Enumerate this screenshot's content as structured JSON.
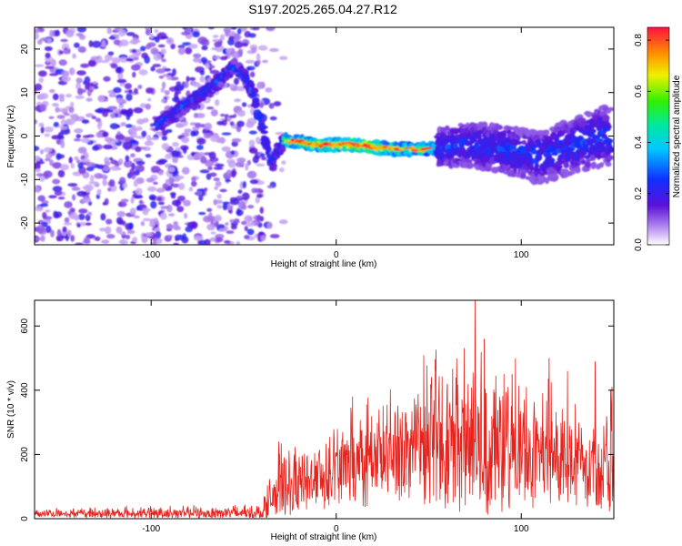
{
  "title": "S197.2025.265.04.27.R12",
  "chart_data": [
    {
      "type": "heatmap",
      "xlabel": "Height of straight line (km)",
      "ylabel": "Frequency (Hz)",
      "xlim": [
        -163,
        150
      ],
      "ylim": [
        -25,
        25
      ],
      "xticks": [
        -100,
        0,
        100
      ],
      "yticks": [
        -20,
        -10,
        0,
        10,
        20
      ],
      "colorbar": {
        "label": "Normalized spectral amplitude",
        "ticks": [
          0.0,
          0.2,
          0.4,
          0.6,
          0.8
        ],
        "range": [
          0,
          0.85
        ]
      },
      "ridge": [
        {
          "x": -95,
          "y": 3
        },
        {
          "x": -85,
          "y": 6
        },
        {
          "x": -75,
          "y": 9
        },
        {
          "x": -65,
          "y": 12
        },
        {
          "x": -55,
          "y": 16
        },
        {
          "x": -50,
          "y": 14
        },
        {
          "x": -45,
          "y": 10
        },
        {
          "x": -40,
          "y": 2
        },
        {
          "x": -35,
          "y": -6
        },
        {
          "x": -28,
          "y": -1
        },
        {
          "x": -10,
          "y": -2
        },
        {
          "x": 10,
          "y": -2
        },
        {
          "x": 30,
          "y": -3
        },
        {
          "x": 50,
          "y": -3
        },
        {
          "x": 70,
          "y": -2
        },
        {
          "x": 90,
          "y": -3
        },
        {
          "x": 110,
          "y": -5
        },
        {
          "x": 130,
          "y": -2
        },
        {
          "x": 145,
          "y": 0
        }
      ]
    },
    {
      "type": "line",
      "xlabel": "Height of straight line (km)",
      "ylabel": "SNR (10 * v/v)",
      "xlim": [
        -163,
        150
      ],
      "ylim": [
        0,
        680
      ],
      "xticks": [
        -100,
        0,
        100
      ],
      "yticks": [
        0,
        200,
        400,
        600
      ],
      "series": [
        {
          "name": "SNR",
          "color": "#e8221c",
          "envelope_x": [
            -163,
            -40,
            -35,
            -30,
            -20,
            0,
            20,
            40,
            60,
            70,
            80,
            100,
            120,
            140,
            150
          ],
          "envelope_base": [
            12,
            12,
            40,
            60,
            80,
            110,
            140,
            170,
            170,
            170,
            150,
            150,
            140,
            120,
            110
          ],
          "envelope_amp": [
            20,
            30,
            120,
            150,
            130,
            200,
            230,
            260,
            330,
            340,
            320,
            280,
            240,
            230,
            250
          ],
          "peaks": [
            {
              "x": -31,
              "y": 240
            },
            {
              "x": 38,
              "y": 300
            },
            {
              "x": 60,
              "y": 420
            },
            {
              "x": 75,
              "y": 680
            },
            {
              "x": 80,
              "y": 560
            },
            {
              "x": 95,
              "y": 450
            },
            {
              "x": 115,
              "y": 500
            },
            {
              "x": 125,
              "y": 460
            },
            {
              "x": 140,
              "y": 490
            },
            {
              "x": 149,
              "y": 410
            }
          ]
        }
      ]
    }
  ]
}
